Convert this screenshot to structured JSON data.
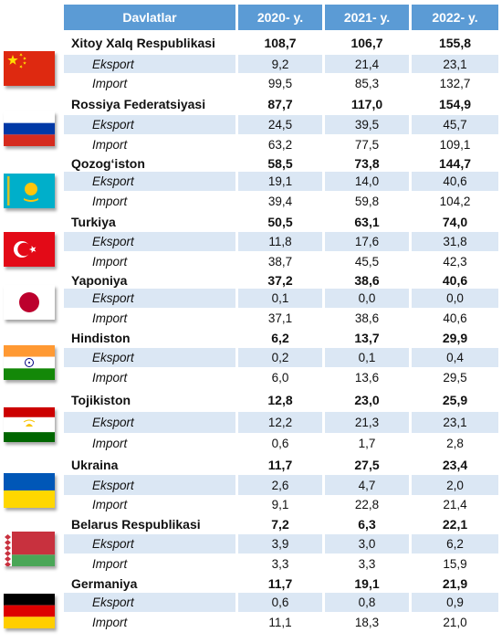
{
  "header": {
    "country": "Davlatlar",
    "y2020": "2020- y.",
    "y2021": "2021- y.",
    "y2022": "2022- y."
  },
  "countries": [
    {
      "name": "Xitoy Xalq Respublikasi",
      "flag_icon": "china-flag-icon",
      "total": [
        "108,7",
        "106,7",
        "155,8"
      ],
      "export_label": "Eksport",
      "export": [
        "9,2",
        "21,4",
        "23,1"
      ],
      "import_label": "Import",
      "import": [
        "99,5",
        "85,3",
        "132,7"
      ]
    },
    {
      "name": "Rossiya Federatsiyasi",
      "flag_icon": "russia-flag-icon",
      "total": [
        "87,7",
        "117,0",
        "154,9"
      ],
      "export_label": "Eksport",
      "export": [
        "24,5",
        "39,5",
        "45,7"
      ],
      "import_label": "Import",
      "import": [
        "63,2",
        "77,5",
        "109,1"
      ]
    },
    {
      "name": "Qozog‘iston",
      "flag_icon": "kazakhstan-flag-icon",
      "total": [
        "58,5",
        "73,8",
        "144,7"
      ],
      "export_label": "Eksport",
      "export": [
        "19,1",
        "14,0",
        "40,6"
      ],
      "import_label": "Import",
      "import": [
        "39,4",
        "59,8",
        "104,2"
      ]
    },
    {
      "name": "Turkiya",
      "flag_icon": "turkey-flag-icon",
      "total": [
        "50,5",
        "63,1",
        "74,0"
      ],
      "export_label": "Eksport",
      "export": [
        "11,8",
        "17,6",
        "31,8"
      ],
      "import_label": "Import",
      "import": [
        "38,7",
        "45,5",
        "42,3"
      ]
    },
    {
      "name": "Yaponiya",
      "flag_icon": "japan-flag-icon",
      "total": [
        "37,2",
        "38,6",
        "40,6"
      ],
      "export_label": "Eksport",
      "export": [
        "0,1",
        "0,0",
        "0,0"
      ],
      "import_label": "Import",
      "import": [
        "37,1",
        "38,6",
        "40,6"
      ]
    },
    {
      "name": "Hindiston",
      "flag_icon": "india-flag-icon",
      "total": [
        "6,2",
        "13,7",
        "29,9"
      ],
      "export_label": "Eksport",
      "export": [
        "0,2",
        "0,1",
        "0,4"
      ],
      "import_label": "Import",
      "import": [
        "6,0",
        "13,6",
        "29,5"
      ]
    },
    {
      "name": "Tojikiston",
      "flag_icon": "tajikistan-flag-icon",
      "total": [
        "12,8",
        "23,0",
        "25,9"
      ],
      "export_label": "Eksport",
      "export": [
        "12,2",
        "21,3",
        "23,1"
      ],
      "import_label": "Import",
      "import": [
        "0,6",
        "1,7",
        "2,8"
      ]
    },
    {
      "name": "Ukraina",
      "flag_icon": "ukraine-flag-icon",
      "total": [
        "11,7",
        "27,5",
        "23,4"
      ],
      "export_label": "Eksport",
      "export": [
        "2,6",
        "4,7",
        "2,0"
      ],
      "import_label": "Import",
      "import": [
        "9,1",
        "22,8",
        "21,4"
      ]
    },
    {
      "name": "Belarus Respublikasi",
      "flag_icon": "belarus-flag-icon",
      "total": [
        "7,2",
        "6,3",
        "22,1"
      ],
      "export_label": "Eksport",
      "export": [
        "3,9",
        "3,0",
        "6,2"
      ],
      "import_label": "Import",
      "import": [
        "3,3",
        "3,3",
        "15,9"
      ]
    },
    {
      "name": "Germaniya",
      "flag_icon": "germany-flag-icon",
      "total": [
        "11,7",
        "19,1",
        "21,9"
      ],
      "export_label": "Eksport",
      "export": [
        "0,6",
        "0,8",
        "0,9"
      ],
      "import_label": "Import",
      "import": [
        "11,1",
        "18,3",
        "21,0"
      ]
    }
  ]
}
